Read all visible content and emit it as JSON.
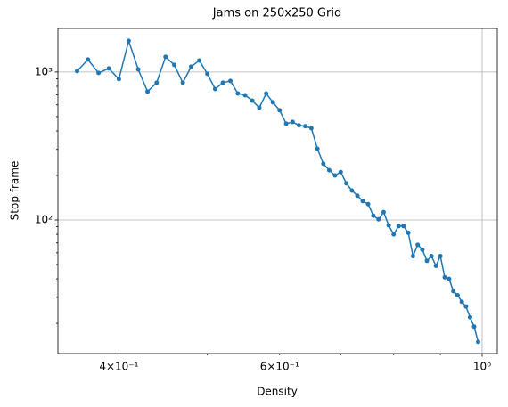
{
  "chart_data": {
    "type": "line",
    "title": "Jams on 250x250 Grid",
    "xlabel": "Density",
    "ylabel": "Stop frame",
    "xscale": "log",
    "yscale": "log",
    "grid": true,
    "x": [
      0.36,
      0.37,
      0.38,
      0.39,
      0.4,
      0.41,
      0.42,
      0.43,
      0.44,
      0.45,
      0.46,
      0.47,
      0.48,
      0.49,
      0.5,
      0.51,
      0.52,
      0.53,
      0.54,
      0.55,
      0.56,
      0.57,
      0.58,
      0.59,
      0.6,
      0.61,
      0.62,
      0.63,
      0.64,
      0.65,
      0.66,
      0.67,
      0.68,
      0.69,
      0.7,
      0.71,
      0.72,
      0.73,
      0.74,
      0.75,
      0.76,
      0.77,
      0.78,
      0.79,
      0.8,
      0.81,
      0.82,
      0.83,
      0.84,
      0.85,
      0.86,
      0.87,
      0.88,
      0.89,
      0.9,
      0.91,
      0.92,
      0.93,
      0.94,
      0.95,
      0.96,
      0.97,
      0.98,
      0.99
    ],
    "series": [
      {
        "name": "Stop frame",
        "color": "#1f77b4",
        "values": [
          1014,
          1214,
          986,
          1057,
          895,
          1625,
          1043,
          737,
          847,
          1266,
          1117,
          847,
          1087,
          1197,
          973,
          768,
          847,
          871,
          716,
          697,
          641,
          574,
          716,
          624,
          551,
          448,
          460,
          436,
          430,
          417,
          303,
          240,
          217,
          200,
          211,
          177,
          158,
          146,
          134,
          128,
          107,
          101,
          113,
          92,
          80,
          91,
          91,
          82,
          57,
          68,
          63,
          53,
          57,
          49,
          57,
          41,
          40,
          33,
          31,
          28,
          26,
          22,
          19,
          15
        ]
      }
    ],
    "xlim": [
      0.343,
      1.039
    ],
    "ylim": [
      12.5,
      1970
    ],
    "xticks": [
      {
        "value": 1,
        "label": "10⁰"
      }
    ],
    "xminorticks": [
      {
        "value": 0.4,
        "label": "4×10⁻¹"
      },
      0.5,
      {
        "value": 0.6,
        "label": "6×10⁻¹"
      },
      0.7,
      0.8,
      0.9
    ],
    "yticks": [
      {
        "value": 100,
        "label": "10²"
      },
      {
        "value": 1000,
        "label": "10³"
      }
    ],
    "yminorticks": [
      20,
      30,
      40,
      50,
      60,
      70,
      80,
      90,
      200,
      300,
      400,
      500,
      600,
      700,
      800,
      900
    ]
  }
}
